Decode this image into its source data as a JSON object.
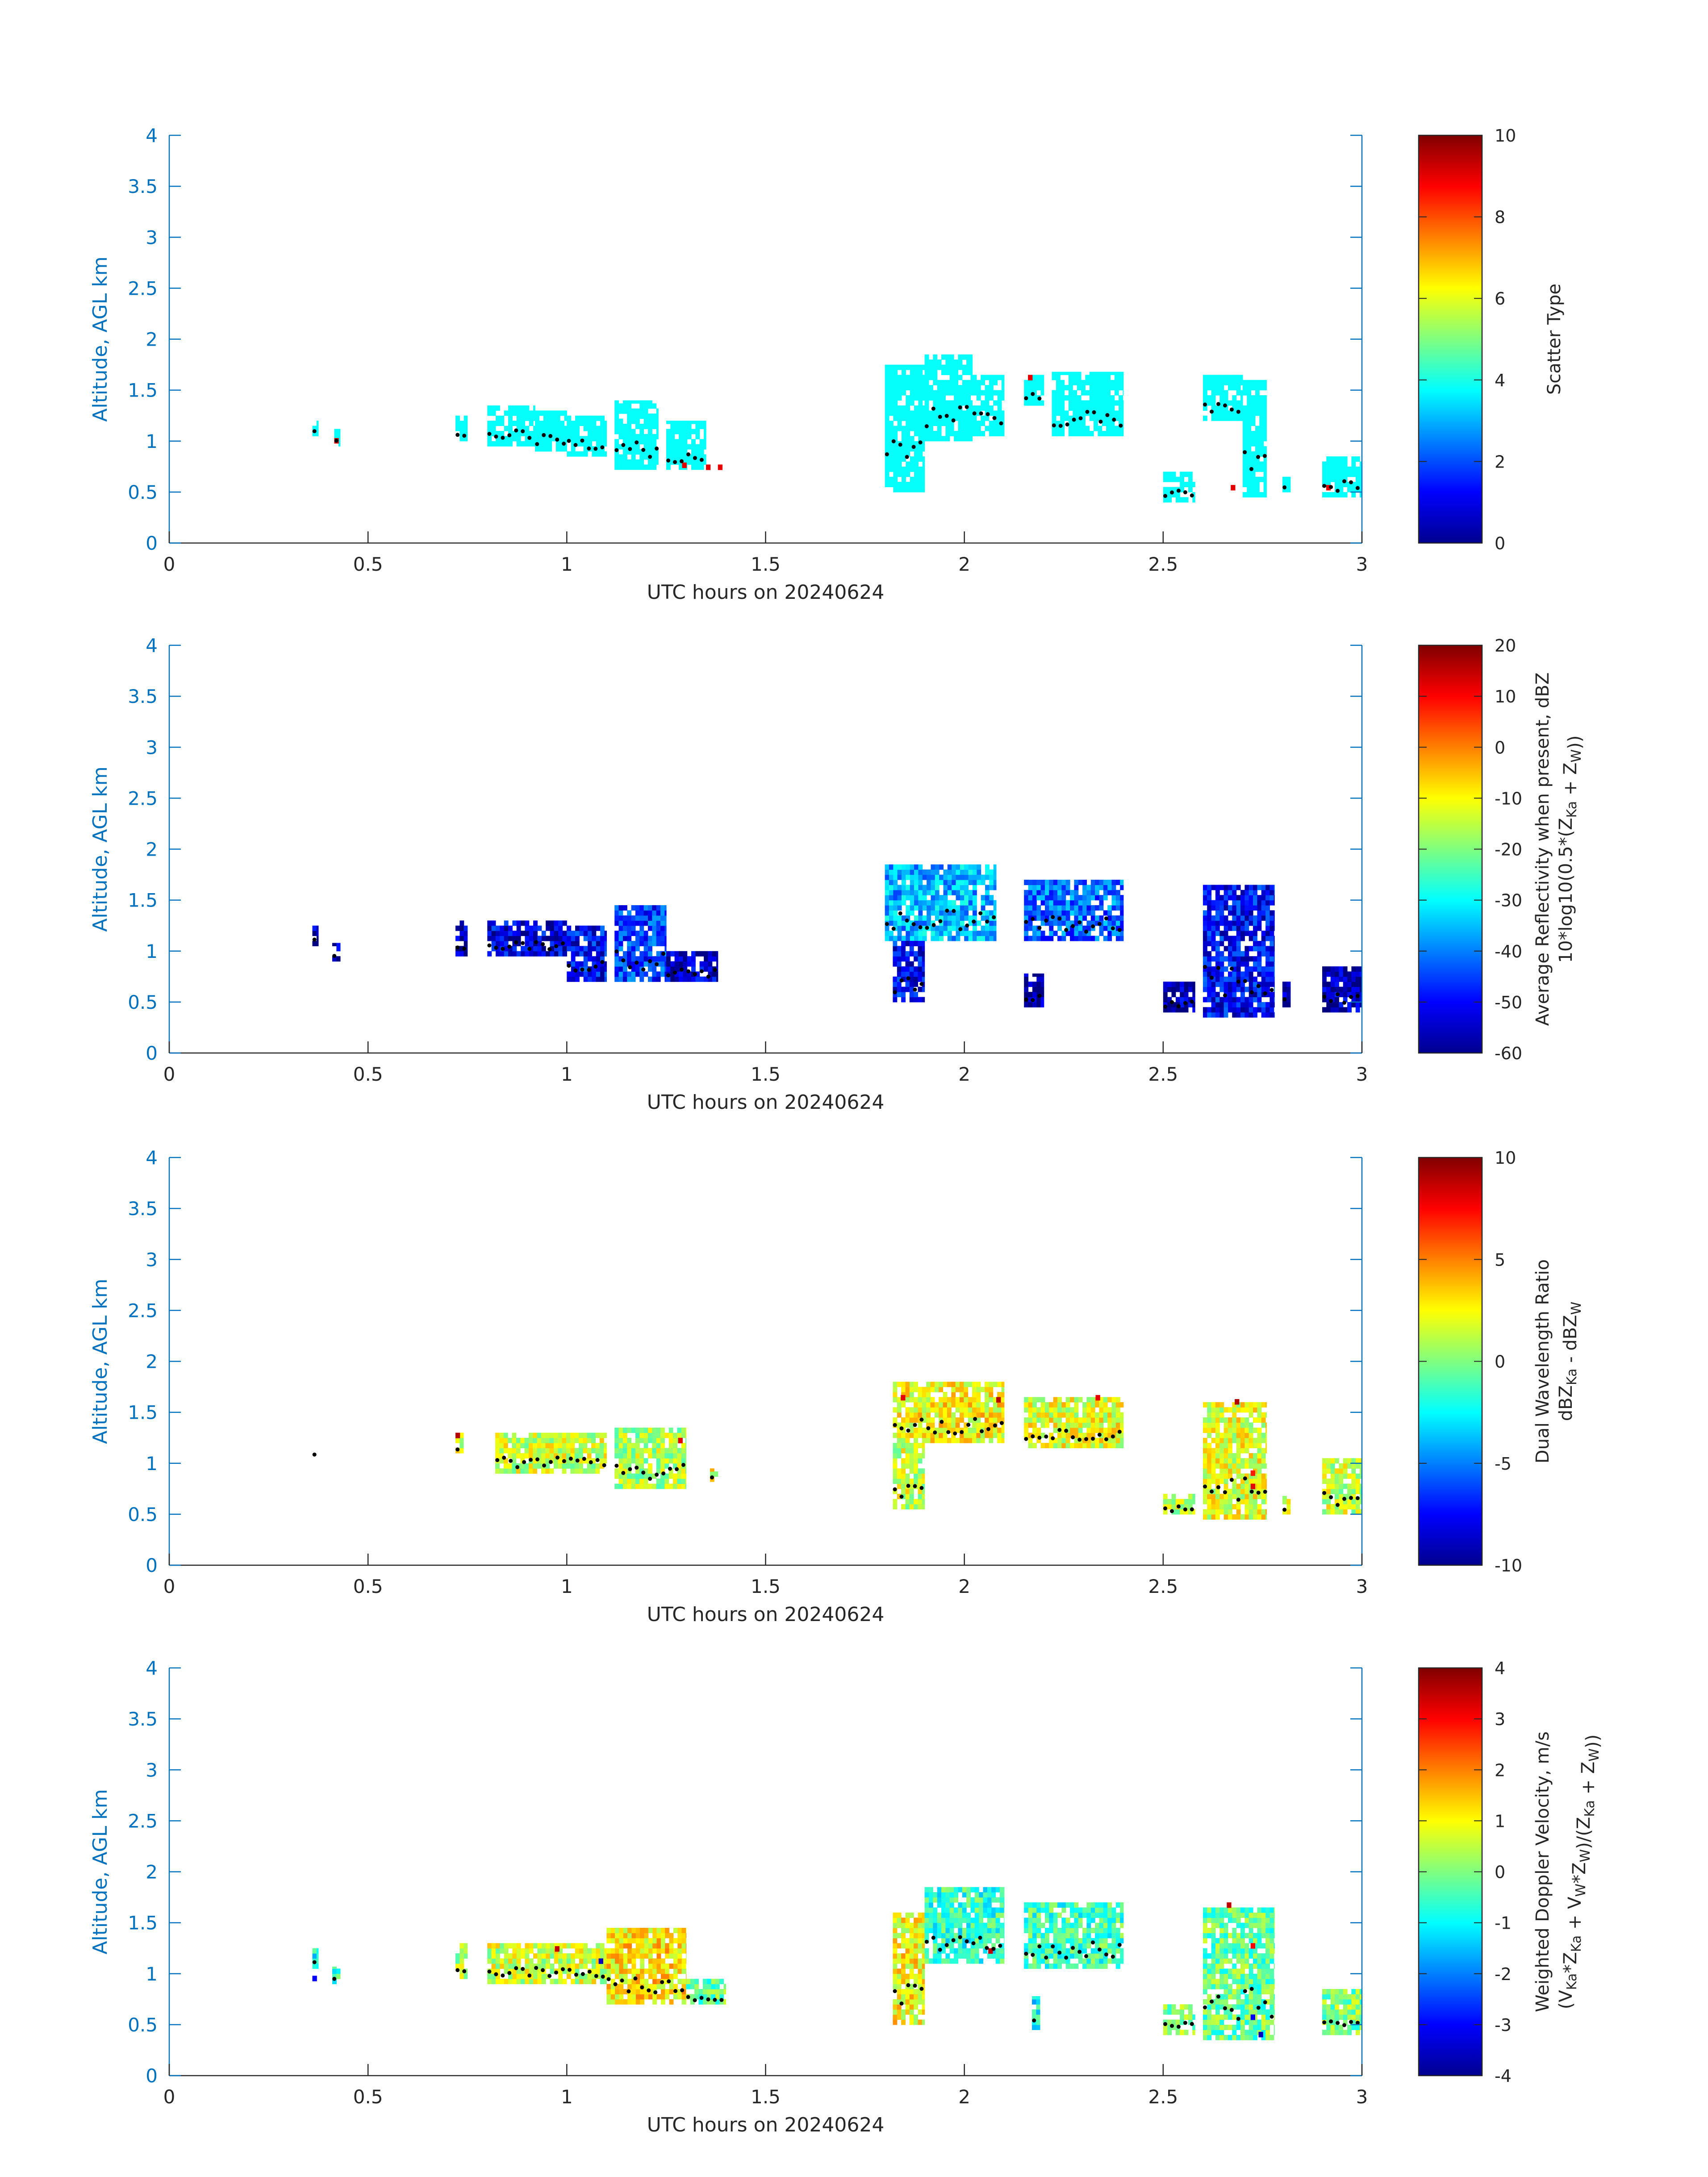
{
  "figure": {
    "background": "#ffffff"
  },
  "shared_axes": {
    "xlabel": "UTC hours on 20240624",
    "ylabel": "Altitude, AGL km",
    "xlim": [
      0,
      3
    ],
    "ylim": [
      0,
      4
    ],
    "xticks": [
      0,
      0.5,
      1,
      1.5,
      2,
      2.5,
      3
    ],
    "xtick_labels": [
      "0",
      "0.5",
      "1",
      "1.5",
      "2",
      "2.5",
      "3"
    ],
    "yticks": [
      0,
      0.5,
      1,
      1.5,
      2,
      2.5,
      3,
      3.5,
      4
    ],
    "ytick_labels": [
      "0",
      "0.5",
      "1",
      "1.5",
      "2",
      "2.5",
      "3",
      "3.5",
      "4"
    ],
    "axis_color": "#0072bd",
    "tick_label_color": "#262626",
    "colormap": "jet"
  },
  "chart_data": [
    {
      "type": "heatmap",
      "panel": 1,
      "xlabel": "UTC hours on 20240624",
      "ylabel": "Altitude, AGL km",
      "colorbar": {
        "label": "Scatter Type",
        "label_lines": [
          "Scatter Type"
        ],
        "vmin": 0,
        "vmax": 10,
        "ticks": [
          0,
          2,
          4,
          6,
          8,
          10
        ],
        "tick_labels": [
          "0",
          "2",
          "4",
          "6",
          "8",
          "10"
        ]
      },
      "default_value": 3.8,
      "regions": [
        {
          "x": [
            0.36,
            0.375
          ],
          "y": [
            1.05,
            1.2
          ]
        },
        {
          "x": [
            0.415,
            0.43
          ],
          "y": [
            0.95,
            1.12
          ]
        },
        {
          "x": [
            0.72,
            0.75
          ],
          "y": [
            1.0,
            1.25
          ]
        },
        {
          "x": [
            0.8,
            0.92
          ],
          "y": [
            0.95,
            1.35
          ]
        },
        {
          "x": [
            0.92,
            1.0
          ],
          "y": [
            0.9,
            1.3
          ]
        },
        {
          "x": [
            1.0,
            1.1
          ],
          "y": [
            0.85,
            1.25
          ]
        },
        {
          "x": [
            1.12,
            1.23
          ],
          "y": [
            0.72,
            1.4
          ]
        },
        {
          "x": [
            1.25,
            1.35
          ],
          "y": [
            0.72,
            1.2
          ]
        },
        {
          "x": [
            1.8,
            1.9
          ],
          "y": [
            0.5,
            1.75
          ]
        },
        {
          "x": [
            1.9,
            2.02
          ],
          "y": [
            1.0,
            1.85
          ]
        },
        {
          "x": [
            2.02,
            2.1
          ],
          "y": [
            1.05,
            1.65
          ]
        },
        {
          "x": [
            2.15,
            2.2
          ],
          "y": [
            1.35,
            1.65
          ]
        },
        {
          "x": [
            2.22,
            2.4
          ],
          "y": [
            1.05,
            1.68
          ]
        },
        {
          "x": [
            2.5,
            2.58
          ],
          "y": [
            0.4,
            0.7
          ]
        },
        {
          "x": [
            2.6,
            2.7
          ],
          "y": [
            1.2,
            1.65
          ]
        },
        {
          "x": [
            2.7,
            2.76
          ],
          "y": [
            0.45,
            1.6
          ]
        },
        {
          "x": [
            2.8,
            2.82
          ],
          "y": [
            0.5,
            0.68
          ]
        },
        {
          "x": [
            2.9,
            3.0
          ],
          "y": [
            0.45,
            0.85
          ]
        }
      ],
      "spots": [
        {
          "x": 0.415,
          "y": 0.98,
          "value": 9
        },
        {
          "x": 1.29,
          "y": 0.74,
          "value": 9
        },
        {
          "x": 1.35,
          "y": 0.72,
          "value": 9
        },
        {
          "x": 1.38,
          "y": 0.72,
          "value": 9
        },
        {
          "x": 2.16,
          "y": 1.6,
          "value": 9
        },
        {
          "x": 2.67,
          "y": 0.52,
          "value": 9
        },
        {
          "x": 2.91,
          "y": 0.52,
          "value": 9
        }
      ],
      "marker_dots": "black"
    },
    {
      "type": "heatmap",
      "panel": 2,
      "xlabel": "UTC hours on 20240624",
      "ylabel": "Altitude, AGL km",
      "colorbar": {
        "label": "Average Reflectivity when present, dBZ 10*log10(0.5*(ZKa + ZW))",
        "label_lines": [
          "Average Reflectivity when present, dBZ",
          "10*log10(0.5*(Z_Ka + Z_W))"
        ],
        "vmin": -60,
        "vmax": 20,
        "ticks": [
          -60,
          -50,
          -40,
          -30,
          -20,
          -10,
          0,
          10,
          20
        ],
        "tick_labels": [
          "-60",
          "-50",
          "-40",
          "-30",
          "-20",
          "-10",
          "0",
          "10",
          "20"
        ]
      },
      "default_value": -52,
      "regions": [
        {
          "x": [
            0.36,
            0.375
          ],
          "y": [
            1.05,
            1.25
          ],
          "value": -56
        },
        {
          "x": [
            0.41,
            0.43
          ],
          "y": [
            0.9,
            1.08
          ],
          "value": -57
        },
        {
          "x": [
            0.72,
            0.75
          ],
          "y": [
            0.95,
            1.3
          ],
          "value": -54
        },
        {
          "x": [
            0.8,
            1.0
          ],
          "y": [
            0.95,
            1.3
          ],
          "value": -52
        },
        {
          "x": [
            1.0,
            1.1
          ],
          "y": [
            0.7,
            1.25
          ],
          "value": -50
        },
        {
          "x": [
            1.12,
            1.25
          ],
          "y": [
            0.7,
            1.45
          ],
          "value": -46
        },
        {
          "x": [
            1.25,
            1.38
          ],
          "y": [
            0.7,
            1.0
          ],
          "value": -54
        },
        {
          "x": [
            1.8,
            2.08
          ],
          "y": [
            1.1,
            1.85
          ],
          "value": -36
        },
        {
          "x": [
            1.82,
            1.9
          ],
          "y": [
            0.5,
            1.1
          ],
          "value": -50
        },
        {
          "x": [
            2.15,
            2.2
          ],
          "y": [
            0.45,
            0.78
          ],
          "value": -58
        },
        {
          "x": [
            2.15,
            2.4
          ],
          "y": [
            1.1,
            1.7
          ],
          "value": -42
        },
        {
          "x": [
            2.5,
            2.58
          ],
          "y": [
            0.4,
            0.7
          ],
          "value": -56
        },
        {
          "x": [
            2.6,
            2.78
          ],
          "y": [
            0.35,
            1.65
          ],
          "value": -50
        },
        {
          "x": [
            2.8,
            2.82
          ],
          "y": [
            0.45,
            0.7
          ],
          "value": -58
        },
        {
          "x": [
            2.9,
            3.0
          ],
          "y": [
            0.4,
            0.85
          ],
          "value": -56
        }
      ],
      "spots": [],
      "marker_dots": "black"
    },
    {
      "type": "heatmap",
      "panel": 3,
      "xlabel": "UTC hours on 20240624",
      "ylabel": "Altitude, AGL km",
      "colorbar": {
        "label": "Dual Wavelength Ratio dBZKa - dBZW",
        "label_lines": [
          "Dual Wavelength Ratio",
          "dBZ_Ka - dBZ_W"
        ],
        "vmin": -10,
        "vmax": 10,
        "ticks": [
          -10,
          -5,
          0,
          5,
          10
        ],
        "tick_labels": [
          "-10",
          "-5",
          "0",
          "5",
          "10"
        ]
      },
      "default_value": 1.5,
      "regions": [
        {
          "x": [
            0.36,
            0.37
          ],
          "y": [
            1.07,
            1.12
          ],
          "value": -2
        },
        {
          "x": [
            0.72,
            0.74
          ],
          "y": [
            1.1,
            1.3
          ],
          "value": 2
        },
        {
          "x": [
            0.82,
            1.1
          ],
          "y": [
            0.9,
            1.3
          ],
          "value": 1.5
        },
        {
          "x": [
            1.12,
            1.3
          ],
          "y": [
            0.75,
            1.35
          ],
          "value": 1.0
        },
        {
          "x": [
            1.36,
            1.38
          ],
          "y": [
            0.82,
            0.95
          ],
          "value": 2
        },
        {
          "x": [
            1.82,
            2.1
          ],
          "y": [
            1.2,
            1.8
          ],
          "value": 2.5
        },
        {
          "x": [
            1.82,
            1.9
          ],
          "y": [
            0.55,
            1.2
          ],
          "value": 1.5
        },
        {
          "x": [
            2.15,
            2.4
          ],
          "y": [
            1.15,
            1.65
          ],
          "value": 2.0
        },
        {
          "x": [
            2.5,
            2.58
          ],
          "y": [
            0.5,
            0.7
          ],
          "value": 1.0
        },
        {
          "x": [
            2.6,
            2.76
          ],
          "y": [
            0.45,
            1.6
          ],
          "value": 2.0
        },
        {
          "x": [
            2.8,
            2.82
          ],
          "y": [
            0.5,
            0.68
          ],
          "value": 1.5
        },
        {
          "x": [
            2.9,
            3.0
          ],
          "y": [
            0.5,
            1.05
          ],
          "value": 1.5
        }
      ],
      "spots": [
        {
          "x": 0.72,
          "y": 1.25,
          "value": 9
        },
        {
          "x": 1.28,
          "y": 1.2,
          "value": 8
        },
        {
          "x": 1.84,
          "y": 1.62,
          "value": 8
        },
        {
          "x": 2.08,
          "y": 1.6,
          "value": 9
        },
        {
          "x": 2.33,
          "y": 1.62,
          "value": 8
        },
        {
          "x": 2.72,
          "y": 0.75,
          "value": 8
        },
        {
          "x": 2.72,
          "y": 0.88,
          "value": 7
        },
        {
          "x": 2.68,
          "y": 1.58,
          "value": 9
        }
      ],
      "marker_dots": "black"
    },
    {
      "type": "heatmap",
      "panel": 4,
      "xlabel": "UTC hours on 20240624",
      "ylabel": "Altitude, AGL km",
      "colorbar": {
        "label": "Weighted Doppler Velocity, m/s (VKa*ZKa + VW*ZW)/(ZKa + ZW))",
        "label_lines": [
          "Weighted Doppler Velocity, m/s",
          "(V_Ka*Z_Ka + V_W*Z_W)/(Z_Ka + Z_W))"
        ],
        "vmin": -4,
        "vmax": 4,
        "ticks": [
          -4,
          -3,
          -2,
          -1,
          0,
          1,
          2,
          3,
          4
        ],
        "tick_labels": [
          "-4",
          "-3",
          "-2",
          "-1",
          "0",
          "1",
          "2",
          "3",
          "4"
        ]
      },
      "default_value": -0.3,
      "regions": [
        {
          "x": [
            0.36,
            0.375
          ],
          "y": [
            1.05,
            1.25
          ],
          "value": -1
        },
        {
          "x": [
            0.41,
            0.43
          ],
          "y": [
            0.9,
            1.07
          ],
          "value": -0.5
        },
        {
          "x": [
            0.72,
            0.75
          ],
          "y": [
            0.95,
            1.3
          ],
          "value": 0.5
        },
        {
          "x": [
            0.8,
            1.1
          ],
          "y": [
            0.9,
            1.3
          ],
          "value": 0.6
        },
        {
          "x": [
            1.1,
            1.3
          ],
          "y": [
            0.7,
            1.45
          ],
          "value": 1.2
        },
        {
          "x": [
            1.3,
            1.4
          ],
          "y": [
            0.7,
            0.95
          ],
          "value": -0.2
        },
        {
          "x": [
            1.82,
            1.9
          ],
          "y": [
            0.5,
            1.6
          ],
          "value": 1.0
        },
        {
          "x": [
            1.9,
            2.1
          ],
          "y": [
            1.1,
            1.85
          ],
          "value": -0.6
        },
        {
          "x": [
            2.17,
            2.19
          ],
          "y": [
            0.45,
            0.78
          ],
          "value": -1
        },
        {
          "x": [
            2.15,
            2.4
          ],
          "y": [
            1.05,
            1.7
          ],
          "value": -0.5
        },
        {
          "x": [
            2.5,
            2.58
          ],
          "y": [
            0.4,
            0.7
          ],
          "value": 0
        },
        {
          "x": [
            2.6,
            2.78
          ],
          "y": [
            0.35,
            1.65
          ],
          "value": -0.2
        },
        {
          "x": [
            2.9,
            3.0
          ],
          "y": [
            0.4,
            0.85
          ],
          "value": 0
        }
      ],
      "spots": [
        {
          "x": 0.36,
          "y": 0.93,
          "value": -3
        },
        {
          "x": 0.97,
          "y": 1.22,
          "value": 3.5
        },
        {
          "x": 1.08,
          "y": 1.1,
          "value": -3.5
        },
        {
          "x": 2.06,
          "y": 1.2,
          "value": 3.5
        },
        {
          "x": 2.66,
          "y": 1.65,
          "value": 3.5
        },
        {
          "x": 2.72,
          "y": 1.25,
          "value": 3.0
        },
        {
          "x": 2.74,
          "y": 0.38,
          "value": -3.5
        },
        {
          "x": 2.72,
          "y": 0.55,
          "value": -3.0
        }
      ],
      "marker_dots": "black"
    }
  ]
}
